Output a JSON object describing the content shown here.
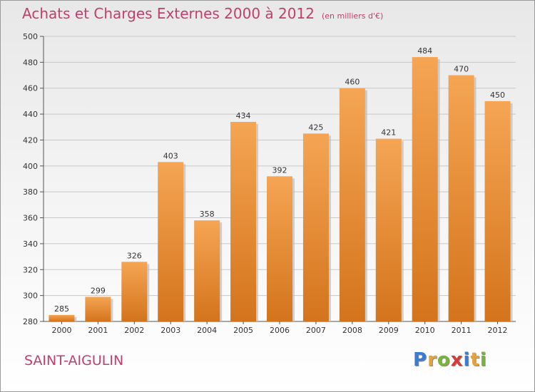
{
  "header": {
    "title": "Achats et Charges Externes 2000 à 2012",
    "subtitle": "(en milliers d'€)"
  },
  "footer": {
    "place": "SAINT-AIGULIN",
    "logo_letters": [
      "P",
      "r",
      "o",
      "x",
      "i",
      "t",
      "i"
    ]
  },
  "colors": {
    "accent": "#c0406a",
    "bar_top": "#f5a554",
    "bar_bottom": "#d4741c",
    "logo": [
      "#3a7bd5",
      "#e8a23a",
      "#7ab23c",
      "#d63a3a",
      "#3a7bd5",
      "#e8a23a",
      "#7ab23c"
    ]
  },
  "chart_data": {
    "type": "bar",
    "title": "Achats et Charges Externes 2000 à 2012",
    "subtitle": "(en milliers d'€)",
    "categories": [
      "2000",
      "2001",
      "2002",
      "2003",
      "2004",
      "2005",
      "2006",
      "2007",
      "2008",
      "2009",
      "2010",
      "2011",
      "2012"
    ],
    "values": [
      285,
      299,
      326,
      403,
      358,
      434,
      392,
      425,
      460,
      421,
      484,
      470,
      450
    ],
    "ylim": [
      280,
      500
    ],
    "yticks": [
      280,
      300,
      320,
      340,
      360,
      380,
      400,
      420,
      440,
      460,
      480,
      500
    ],
    "grid": true,
    "legend": "none"
  }
}
